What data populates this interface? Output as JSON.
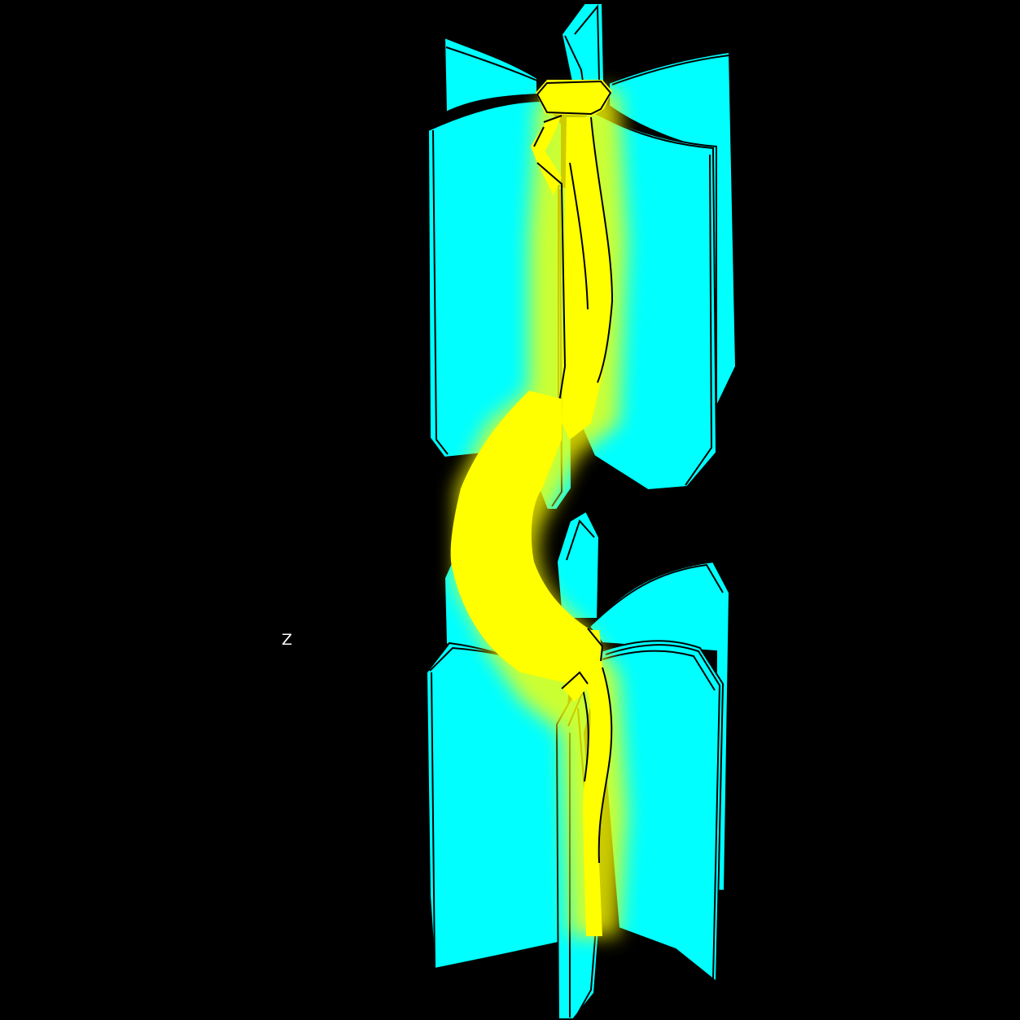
{
  "scene": {
    "background_color": "#000000",
    "vane_color": "#00ffff",
    "core_color": "#ffff00",
    "edge_color": "#000000",
    "axis_label": "Z"
  }
}
